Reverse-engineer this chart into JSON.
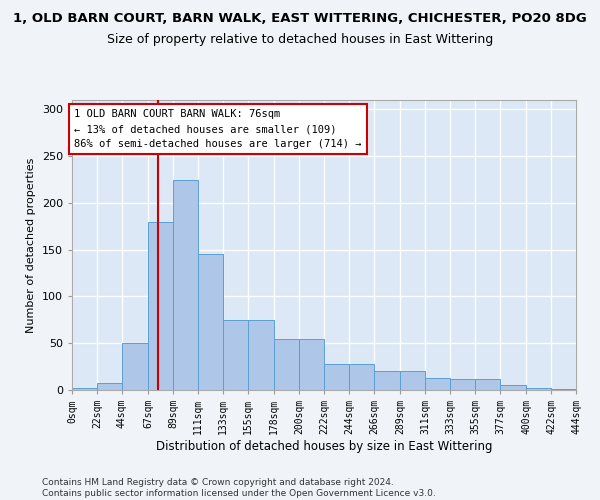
{
  "title": "1, OLD BARN COURT, BARN WALK, EAST WITTERING, CHICHESTER, PO20 8DG",
  "subtitle": "Size of property relative to detached houses in East Wittering",
  "xlabel": "Distribution of detached houses by size in East Wittering",
  "ylabel": "Number of detached properties",
  "bar_color": "#aec6e8",
  "bar_edge_color": "#5a9fd4",
  "background_color": "#dce8f5",
  "fig_background_color": "#f0f4f8",
  "grid_color": "#ffffff",
  "annotation_line_color": "#cc0000",
  "annotation_box_edge_color": "#cc0000",
  "annotation_text": "1 OLD BARN COURT BARN WALK: 76sqm\n← 13% of detached houses are smaller (109)\n86% of semi-detached houses are larger (714) →",
  "property_value": 76,
  "bin_edges": [
    0,
    22,
    44,
    67,
    89,
    111,
    133,
    155,
    178,
    200,
    222,
    244,
    266,
    289,
    311,
    333,
    355,
    377,
    400,
    422,
    444
  ],
  "bar_heights": [
    2,
    8,
    50,
    180,
    225,
    145,
    75,
    75,
    55,
    55,
    28,
    28,
    20,
    20,
    13,
    12,
    12,
    5,
    2,
    1
  ],
  "tick_labels": [
    "0sqm",
    "22sqm",
    "44sqm",
    "67sqm",
    "89sqm",
    "111sqm",
    "133sqm",
    "155sqm",
    "178sqm",
    "200sqm",
    "222sqm",
    "244sqm",
    "266sqm",
    "289sqm",
    "311sqm",
    "333sqm",
    "355sqm",
    "377sqm",
    "400sqm",
    "422sqm",
    "444sqm"
  ],
  "ylim": [
    0,
    310
  ],
  "yticks": [
    0,
    50,
    100,
    150,
    200,
    250,
    300
  ],
  "footer": "Contains HM Land Registry data © Crown copyright and database right 2024.\nContains public sector information licensed under the Open Government Licence v3.0.",
  "title_fontsize": 9.5,
  "subtitle_fontsize": 9,
  "xlabel_fontsize": 8.5,
  "ylabel_fontsize": 8,
  "tick_fontsize": 7,
  "annotation_fontsize": 7.5,
  "footer_fontsize": 6.5
}
